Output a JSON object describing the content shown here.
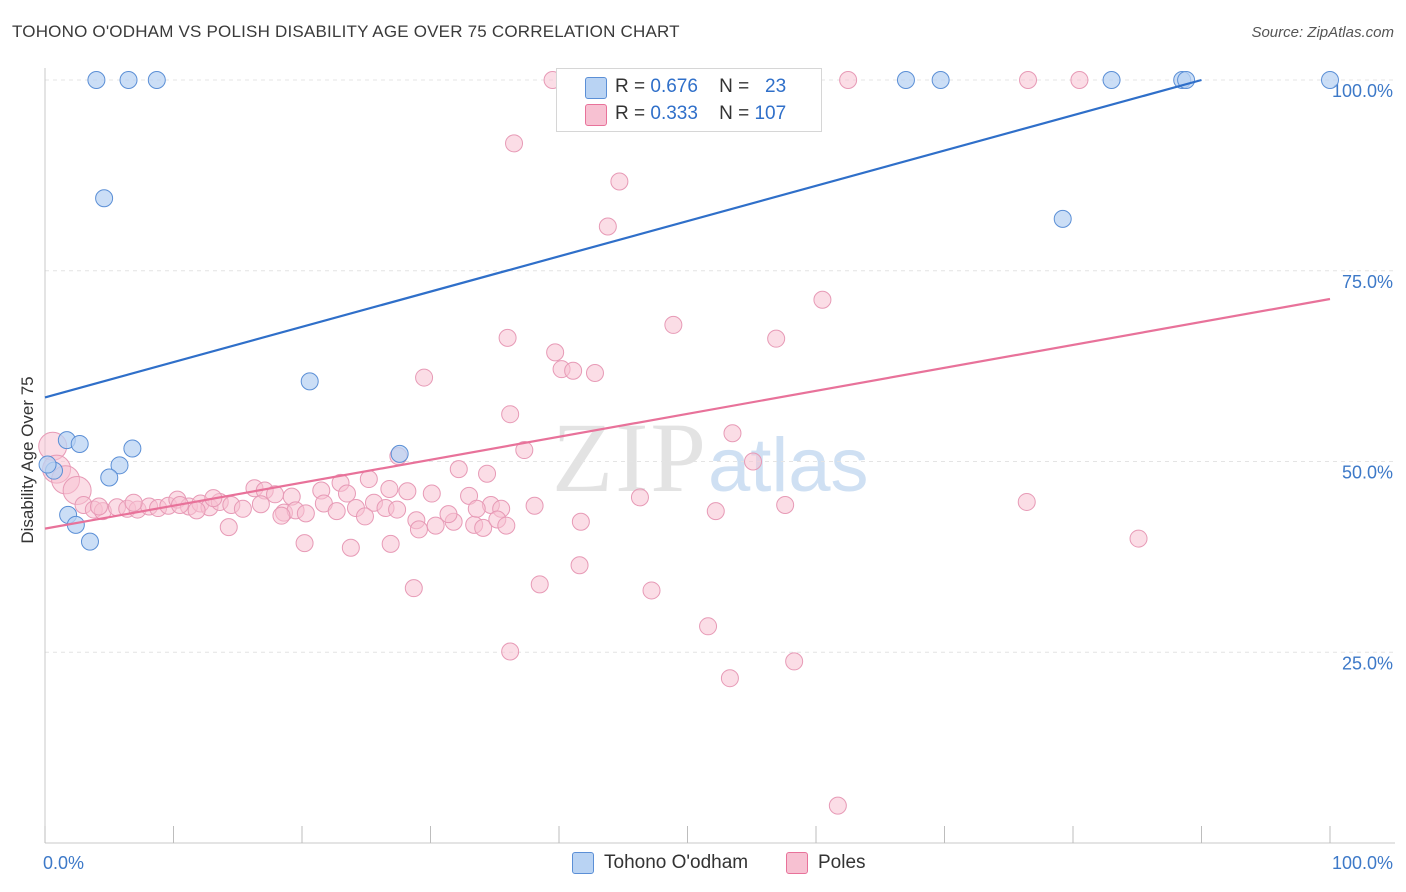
{
  "title": "TOHONO O'ODHAM VS POLISH DISABILITY AGE OVER 75 CORRELATION CHART",
  "source": "Source: ZipAtlas.com",
  "watermark": {
    "a": "ZIP",
    "b": "atlas"
  },
  "legend": {
    "series": [
      {
        "name": "Tohono O'odham",
        "r_label": "R =",
        "r": "0.676",
        "n_label": "N =",
        "n": "23",
        "color": "#5b8fd6",
        "fill": "#b9d3f3"
      },
      {
        "name": "Poles",
        "r_label": "R =",
        "r": "0.333",
        "n_label": "N =",
        "n": "107",
        "color": "#e8729a",
        "fill": "#f7c1d2"
      }
    ]
  },
  "chart_data": {
    "type": "scatter",
    "title": "TOHONO O'ODHAM VS POLISH DISABILITY AGE OVER 75 CORRELATION CHART",
    "xlabel": "",
    "ylabel": "Disability Age Over 75",
    "xlim": [
      0,
      100
    ],
    "ylim": [
      0,
      100
    ],
    "x_tick_labels": [
      "0.0%",
      "100.0%"
    ],
    "y_tick_labels": [
      "25.0%",
      "50.0%",
      "75.0%",
      "100.0%"
    ],
    "y_ticks": [
      25,
      50,
      75,
      100
    ],
    "grid": "horizontal dashed",
    "legend_position": "top-center and bottom",
    "series": [
      {
        "name": "Tohono O'odham",
        "color": "#2f6fc9",
        "trend": {
          "x": [
            0,
            90
          ],
          "y": [
            58.4,
            100
          ]
        },
        "points": [
          [
            4,
            100
          ],
          [
            6.5,
            100
          ],
          [
            8.7,
            100
          ],
          [
            67,
            100
          ],
          [
            69.7,
            100
          ],
          [
            83,
            100
          ],
          [
            88.5,
            100
          ],
          [
            88.8,
            100
          ],
          [
            100,
            100
          ],
          [
            4.6,
            84.5
          ],
          [
            79.2,
            81.8
          ],
          [
            20.6,
            60.5
          ],
          [
            1.7,
            52.8
          ],
          [
            2.7,
            52.3
          ],
          [
            6.8,
            51.7
          ],
          [
            27.6,
            51.0
          ],
          [
            5.8,
            49.5
          ],
          [
            0.7,
            48.8
          ],
          [
            5.0,
            47.9
          ],
          [
            1.8,
            43.0
          ],
          [
            2.4,
            41.7
          ],
          [
            3.5,
            39.5
          ],
          [
            0.2,
            49.6
          ]
        ]
      },
      {
        "name": "Poles",
        "color": "#e8729a",
        "trend": {
          "x": [
            0,
            100
          ],
          "y": [
            41.2,
            71.3
          ]
        },
        "points": [
          [
            39.5,
            100
          ],
          [
            41,
            100
          ],
          [
            44,
            100
          ],
          [
            49.3,
            100
          ],
          [
            62.5,
            100
          ],
          [
            76.5,
            100
          ],
          [
            80.5,
            100
          ],
          [
            36.5,
            91.7
          ],
          [
            44.7,
            86.7
          ],
          [
            43.8,
            80.8
          ],
          [
            60.5,
            71.2
          ],
          [
            48.9,
            67.9
          ],
          [
            56.9,
            66.1
          ],
          [
            36,
            66.2
          ],
          [
            39.7,
            64.3
          ],
          [
            40.2,
            62.1
          ],
          [
            41.1,
            61.9
          ],
          [
            42.8,
            61.6
          ],
          [
            29.5,
            61
          ],
          [
            36.2,
            56.2
          ],
          [
            53.5,
            53.7
          ],
          [
            37.3,
            51.5
          ],
          [
            27.5,
            50.7
          ],
          [
            55.1,
            50
          ],
          [
            32.2,
            49.0
          ],
          [
            34.4,
            48.4
          ],
          [
            0.6,
            52
          ],
          [
            0.9,
            49
          ],
          [
            1.6,
            47.6
          ],
          [
            2.5,
            46.2
          ],
          [
            23,
            47.2
          ],
          [
            25.2,
            47.7
          ],
          [
            23.5,
            45.8
          ],
          [
            19.2,
            45.4
          ],
          [
            21.5,
            46.2
          ],
          [
            26.8,
            46.4
          ],
          [
            28.2,
            46.1
          ],
          [
            30.1,
            45.8
          ],
          [
            33,
            45.5
          ],
          [
            34.7,
            44.3
          ],
          [
            35.5,
            43.8
          ],
          [
            38.1,
            44.2
          ],
          [
            46.3,
            45.3
          ],
          [
            57.6,
            44.3
          ],
          [
            76.4,
            44.7
          ],
          [
            3,
            44.3
          ],
          [
            3.8,
            43.7
          ],
          [
            4.5,
            43.5
          ],
          [
            5.6,
            44
          ],
          [
            6.4,
            43.8
          ],
          [
            7.2,
            43.7
          ],
          [
            8.1,
            44.1
          ],
          [
            8.8,
            43.9
          ],
          [
            9.6,
            44.2
          ],
          [
            10.3,
            45
          ],
          [
            11.2,
            44.1
          ],
          [
            12.1,
            44.5
          ],
          [
            12.8,
            44
          ],
          [
            13.6,
            44.7
          ],
          [
            14.5,
            44.3
          ],
          [
            15.4,
            43.8
          ],
          [
            16.3,
            46.5
          ],
          [
            17.1,
            46.2
          ],
          [
            17.9,
            45.7
          ],
          [
            18.6,
            43.3
          ],
          [
            19.5,
            43.6
          ],
          [
            20.3,
            43.2
          ],
          [
            21.7,
            44.5
          ],
          [
            22.7,
            43.5
          ],
          [
            24.2,
            43.9
          ],
          [
            25.6,
            44.6
          ],
          [
            26.5,
            43.9
          ],
          [
            27.4,
            43.7
          ],
          [
            28.9,
            42.3
          ],
          [
            30.4,
            41.6
          ],
          [
            31.8,
            42.1
          ],
          [
            33.4,
            41.7
          ],
          [
            34.1,
            41.3
          ],
          [
            35.2,
            42.4
          ],
          [
            14.3,
            41.4
          ],
          [
            18.4,
            42.9
          ],
          [
            20.2,
            39.3
          ],
          [
            23.8,
            38.7
          ],
          [
            26.9,
            39.2
          ],
          [
            29.1,
            41.1
          ],
          [
            35.9,
            41.6
          ],
          [
            41.7,
            42.1
          ],
          [
            52.2,
            43.5
          ],
          [
            85.1,
            39.9
          ],
          [
            41.6,
            36.4
          ],
          [
            38.5,
            33.9
          ],
          [
            28.7,
            33.4
          ],
          [
            47.2,
            33.1
          ],
          [
            51.6,
            28.4
          ],
          [
            36.2,
            25.1
          ],
          [
            53.3,
            21.6
          ],
          [
            58.3,
            23.8
          ],
          [
            61.7,
            4.9
          ],
          [
            10.5,
            44.3
          ],
          [
            11.8,
            43.6
          ],
          [
            6.9,
            44.6
          ],
          [
            13.1,
            45.2
          ],
          [
            16.8,
            44.4
          ],
          [
            24.9,
            42.8
          ],
          [
            31.4,
            43.1
          ],
          [
            33.6,
            43.8
          ],
          [
            4.2,
            44.1
          ]
        ]
      }
    ]
  }
}
